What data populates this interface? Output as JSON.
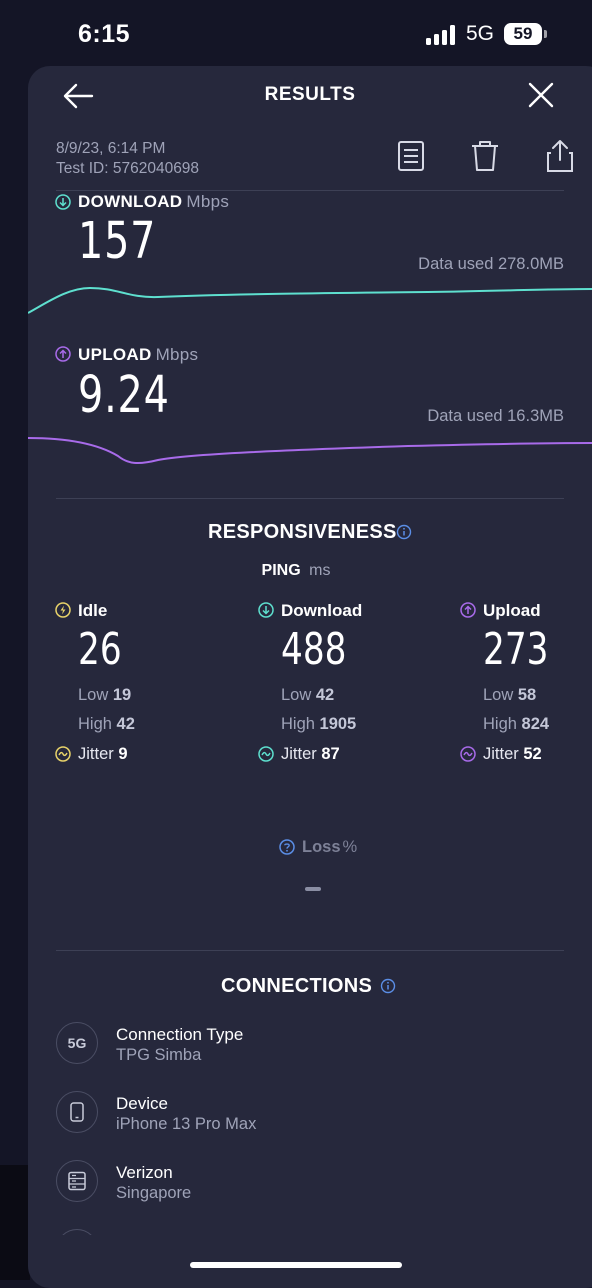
{
  "status_bar": {
    "time": "6:15",
    "network": "5G",
    "battery": "59"
  },
  "header": {
    "title": "RESULTS"
  },
  "meta": {
    "date": "8/9/23, 6:14 PM",
    "test_id": "Test ID: 5762040698"
  },
  "download": {
    "label": "DOWNLOAD",
    "unit": "Mbps",
    "value": "157",
    "data_used": "Data used 278.0MB",
    "color": "#5ee0cf"
  },
  "upload": {
    "label": "UPLOAD",
    "unit": "Mbps",
    "value": "9.24",
    "data_used": "Data used 16.3MB",
    "color": "#a86bea"
  },
  "responsiveness": {
    "title": "RESPONSIVENESS",
    "ping_label": "PING",
    "ping_unit": "ms",
    "columns": [
      {
        "name": "Idle",
        "value": "26",
        "low_label": "Low",
        "low": "19",
        "high_label": "High",
        "high": "42",
        "jitter_label": "Jitter",
        "jitter": "9",
        "color": "#e8d36a"
      },
      {
        "name": "Download",
        "value": "488",
        "low_label": "Low",
        "low": "42",
        "high_label": "High",
        "high": "1905",
        "jitter_label": "Jitter",
        "jitter": "87",
        "color": "#5ee0cf"
      },
      {
        "name": "Upload",
        "value": "273",
        "low_label": "Low",
        "low": "58",
        "high_label": "High",
        "high": "824",
        "jitter_label": "Jitter",
        "jitter": "52",
        "color": "#a86bea"
      }
    ],
    "loss_label": "Loss",
    "loss_unit": "%"
  },
  "connections": {
    "title": "CONNECTIONS",
    "items": [
      {
        "title": "Connection Type",
        "subtitle": "TPG Simba",
        "icon": "5G"
      },
      {
        "title": "Device",
        "subtitle": "iPhone 13 Pro Max",
        "icon": "phone-icon"
      },
      {
        "title": "Verizon",
        "subtitle": "Singapore",
        "icon": "server-icon"
      }
    ]
  },
  "colors": {
    "info": "#5b8ee6",
    "background": "#26283c"
  }
}
